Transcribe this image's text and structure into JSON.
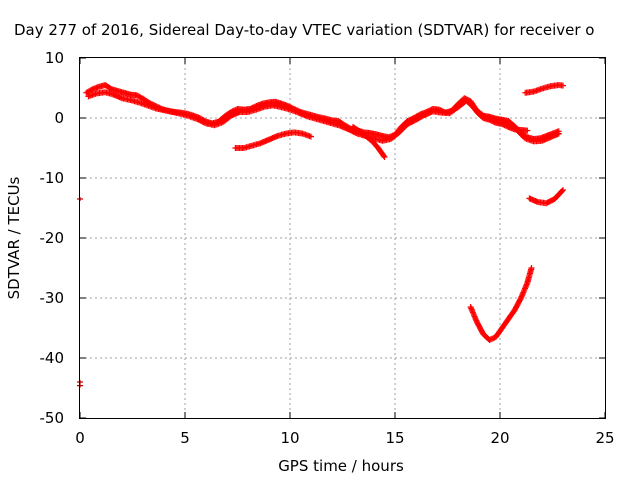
{
  "chart_data": {
    "type": "scatter",
    "title": "Day 277 of 2016, Sidereal Day-to-day VTEC variation (SDTVAR) for receiver o",
    "xlabel": "GPS time / hours",
    "ylabel": "SDTVAR / TECUs",
    "xlim": [
      0,
      25
    ],
    "ylim": [
      -50,
      10
    ],
    "xticks": [
      0,
      5,
      10,
      15,
      20,
      25
    ],
    "yticks": [
      10,
      0,
      -10,
      -20,
      -30,
      -40,
      -50
    ],
    "grid": true,
    "marker_color": "#ff0000",
    "outlier_color": "#c00000",
    "series": [
      {
        "points": [
          [
            0.3,
            4.2
          ],
          [
            0.6,
            4.8
          ],
          [
            0.9,
            5.2
          ],
          [
            1.2,
            5.5
          ],
          [
            1.5,
            4.8
          ],
          [
            1.8,
            4.5
          ],
          [
            2.1,
            4.2
          ],
          [
            2.4,
            3.9
          ],
          [
            2.7,
            3.8
          ],
          [
            3.0,
            3.2
          ],
          [
            3.3,
            2.5
          ],
          [
            3.6,
            2.0
          ],
          [
            3.9,
            1.5
          ],
          [
            4.2,
            1.2
          ],
          [
            4.5,
            1.0
          ],
          [
            4.8,
            0.9
          ],
          [
            5.1,
            0.7
          ],
          [
            5.4,
            0.4
          ],
          [
            5.7,
            0.0
          ],
          [
            6.0,
            -0.6
          ],
          [
            6.3,
            -0.9
          ],
          [
            6.6,
            -0.6
          ],
          [
            6.9,
            0.3
          ],
          [
            7.2,
            1.0
          ],
          [
            7.5,
            1.5
          ],
          [
            7.8,
            1.4
          ],
          [
            8.1,
            1.5
          ],
          [
            8.4,
            2.0
          ],
          [
            8.7,
            2.4
          ],
          [
            9.0,
            2.6
          ],
          [
            9.3,
            2.7
          ],
          [
            9.6,
            2.4
          ],
          [
            9.9,
            2.0
          ],
          [
            10.2,
            1.5
          ],
          [
            10.5,
            1.0
          ],
          [
            10.8,
            0.7
          ],
          [
            11.1,
            0.4
          ],
          [
            11.4,
            0.1
          ],
          [
            11.7,
            -0.1
          ],
          [
            12.0,
            -0.4
          ],
          [
            12.3,
            -0.5
          ],
          [
            12.6,
            -1.2
          ],
          [
            12.9,
            -1.8
          ],
          [
            13.2,
            -2.0
          ],
          [
            13.5,
            -2.4
          ],
          [
            13.8,
            -2.5
          ],
          [
            14.1,
            -2.7
          ],
          [
            14.4,
            -3.0
          ],
          [
            14.7,
            -3.2
          ],
          [
            15.0,
            -2.8
          ],
          [
            15.3,
            -1.5
          ],
          [
            15.6,
            -0.5
          ],
          [
            15.9,
            0.0
          ],
          [
            16.2,
            0.6
          ],
          [
            16.5,
            1.0
          ],
          [
            16.8,
            1.5
          ],
          [
            17.1,
            1.4
          ],
          [
            17.4,
            0.9
          ],
          [
            17.7,
            1.2
          ],
          [
            18.0,
            2.3
          ],
          [
            18.3,
            3.3
          ],
          [
            18.6,
            2.8
          ],
          [
            18.9,
            1.2
          ],
          [
            19.2,
            0.4
          ],
          [
            19.5,
            0.2
          ],
          [
            19.8,
            -0.1
          ],
          [
            20.1,
            -0.3
          ],
          [
            20.4,
            -0.5
          ],
          [
            20.7,
            -1.4
          ],
          [
            21.0,
            -2.6
          ],
          [
            21.3,
            -3.2
          ],
          [
            21.6,
            -3.5
          ],
          [
            21.9,
            -3.4
          ],
          [
            22.2,
            -3.0
          ],
          [
            22.5,
            -2.6
          ],
          [
            22.8,
            -2.2
          ]
        ]
      },
      {
        "points": [
          [
            0.4,
            3.6
          ],
          [
            0.8,
            4.1
          ],
          [
            1.2,
            4.3
          ],
          [
            1.6,
            3.9
          ],
          [
            2.0,
            3.3
          ],
          [
            2.4,
            3.0
          ],
          [
            2.8,
            2.6
          ],
          [
            3.2,
            2.1
          ],
          [
            3.6,
            1.6
          ],
          [
            4.0,
            1.3
          ],
          [
            4.4,
            1.0
          ],
          [
            4.8,
            0.7
          ],
          [
            5.2,
            0.3
          ],
          [
            5.6,
            -0.2
          ],
          [
            6.0,
            -0.9
          ],
          [
            6.4,
            -1.2
          ],
          [
            6.8,
            -0.7
          ],
          [
            7.2,
            0.4
          ],
          [
            7.6,
            1.0
          ],
          [
            8.0,
            1.0
          ],
          [
            8.4,
            1.4
          ],
          [
            8.8,
            1.9
          ],
          [
            9.2,
            2.1
          ],
          [
            9.6,
            1.8
          ],
          [
            10.0,
            1.4
          ],
          [
            10.4,
            0.9
          ],
          [
            10.8,
            0.3
          ],
          [
            11.2,
            -0.1
          ],
          [
            11.6,
            -0.5
          ],
          [
            12.0,
            -0.9
          ],
          [
            12.4,
            -1.3
          ],
          [
            12.8,
            -1.9
          ],
          [
            13.2,
            -2.6
          ],
          [
            13.6,
            -3.0
          ],
          [
            14.0,
            -3.4
          ],
          [
            14.4,
            -3.8
          ],
          [
            14.8,
            -3.5
          ],
          [
            15.2,
            -2.4
          ],
          [
            15.6,
            -1.0
          ],
          [
            16.0,
            -0.3
          ],
          [
            16.4,
            0.5
          ],
          [
            16.8,
            1.1
          ],
          [
            17.2,
            0.9
          ],
          [
            17.6,
            0.8
          ],
          [
            18.0,
            1.8
          ],
          [
            18.4,
            2.9
          ],
          [
            18.8,
            1.6
          ],
          [
            19.2,
            0.2
          ],
          [
            19.6,
            -0.1
          ],
          [
            20.0,
            -0.4
          ],
          [
            20.4,
            -0.9
          ],
          [
            20.8,
            -2.0
          ],
          [
            21.2,
            -3.4
          ],
          [
            21.6,
            -3.9
          ],
          [
            22.0,
            -3.8
          ],
          [
            22.4,
            -3.2
          ],
          [
            22.8,
            -2.6
          ]
        ]
      },
      {
        "points": [
          [
            7.4,
            -5.0
          ],
          [
            7.8,
            -5.0
          ],
          [
            8.2,
            -4.6
          ],
          [
            8.6,
            -4.2
          ],
          [
            9.0,
            -3.6
          ],
          [
            9.4,
            -3.0
          ],
          [
            9.8,
            -2.6
          ],
          [
            10.2,
            -2.4
          ],
          [
            10.6,
            -2.6
          ],
          [
            11.0,
            -3.1
          ]
        ]
      },
      {
        "points": [
          [
            13.0,
            -1.5
          ],
          [
            13.3,
            -2.2
          ],
          [
            13.6,
            -3.0
          ],
          [
            13.9,
            -3.8
          ],
          [
            14.2,
            -5.0
          ],
          [
            14.5,
            -6.5
          ]
        ]
      },
      {
        "points": [
          [
            18.6,
            2.4
          ],
          [
            18.9,
            1.0
          ],
          [
            19.2,
            0.0
          ],
          [
            19.5,
            -0.3
          ],
          [
            19.8,
            -0.8
          ],
          [
            20.1,
            -1.0
          ],
          [
            20.4,
            -1.5
          ],
          [
            20.7,
            -1.9
          ],
          [
            21.0,
            -2.0
          ],
          [
            21.3,
            -2.1
          ]
        ]
      },
      {
        "points": [
          [
            21.2,
            4.2
          ],
          [
            21.6,
            4.4
          ],
          [
            22.0,
            4.9
          ],
          [
            22.4,
            5.3
          ],
          [
            22.8,
            5.5
          ],
          [
            23.0,
            5.4
          ]
        ]
      },
      {
        "points": [
          [
            21.4,
            -13.4
          ],
          [
            21.8,
            -14.0
          ],
          [
            22.2,
            -14.2
          ],
          [
            22.6,
            -13.5
          ],
          [
            23.0,
            -12.0
          ]
        ]
      },
      {
        "points": [
          [
            18.6,
            -31.5
          ],
          [
            18.9,
            -34.0
          ],
          [
            19.2,
            -36.0
          ],
          [
            19.5,
            -37.0
          ],
          [
            19.8,
            -36.5
          ],
          [
            20.1,
            -35.0
          ],
          [
            20.4,
            -33.5
          ],
          [
            20.7,
            -32.0
          ],
          [
            21.0,
            -30.0
          ],
          [
            21.3,
            -27.5
          ],
          [
            21.5,
            -25.0
          ]
        ]
      }
    ],
    "outliers": [
      [
        0.0,
        -13.5
      ],
      [
        0.0,
        -44.0
      ],
      [
        0.0,
        -44.6
      ]
    ]
  }
}
